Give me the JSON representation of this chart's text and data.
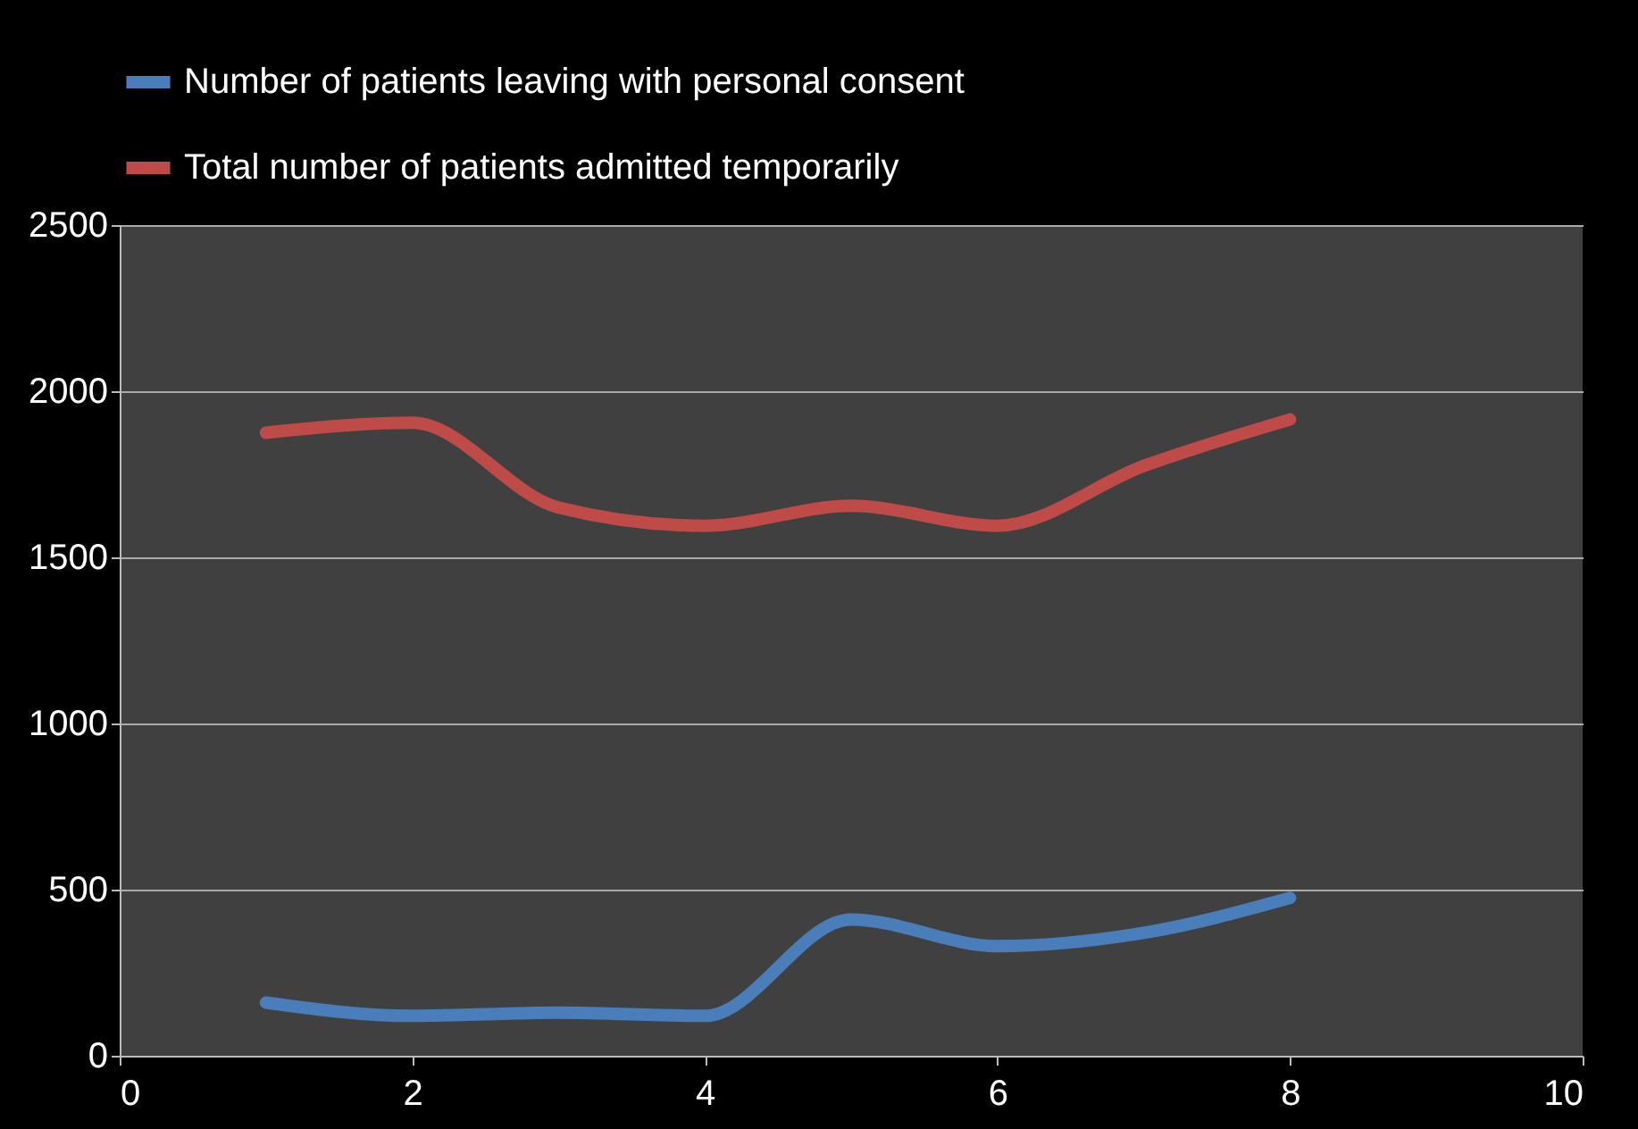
{
  "chart_data": {
    "type": "line",
    "x": [
      1,
      2,
      3,
      4,
      5,
      6,
      7,
      8
    ],
    "series": [
      {
        "name": "Number of patients leaving with personal consent",
        "color": "#4a7ebb",
        "values": [
          160,
          120,
          130,
          120,
          410,
          330,
          370,
          475
        ]
      },
      {
        "name": "Total number of patients admitted temporarily",
        "color": "#be4b48",
        "values": [
          1875,
          1905,
          1650,
          1595,
          1655,
          1595,
          1775,
          1915
        ]
      }
    ],
    "xlim": [
      0,
      10
    ],
    "xticks": [
      0,
      2,
      4,
      6,
      8,
      10
    ],
    "ylim": [
      0,
      2500
    ],
    "yticks": [
      0,
      500,
      1000,
      1500,
      2000,
      2500
    ],
    "grid": "y",
    "legend": "top",
    "marker": "none",
    "line_style": "solid"
  }
}
